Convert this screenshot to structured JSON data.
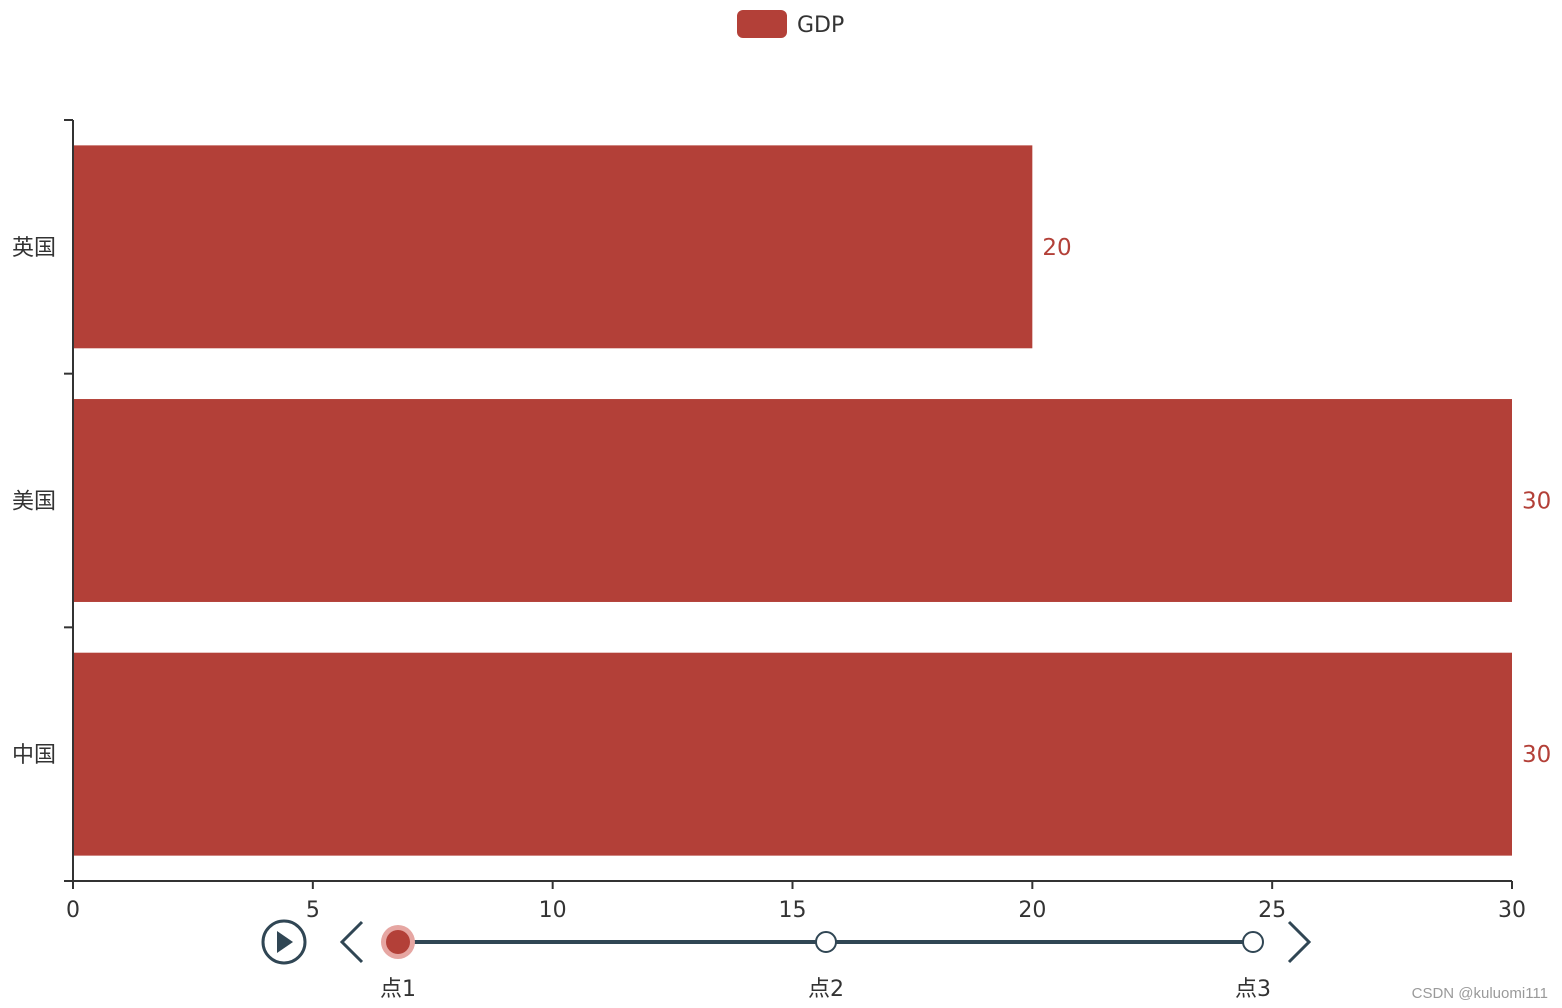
{
  "colors": {
    "bar": "#b34038",
    "axis": "#333333",
    "timeline": "#304654",
    "timeline_active_halo": "#e6a6a2"
  },
  "chart_data": {
    "type": "bar",
    "orientation": "horizontal",
    "categories": [
      "中国",
      "美国",
      "英国"
    ],
    "series": [
      {
        "name": "GDP",
        "values": [
          30,
          30,
          20
        ]
      }
    ],
    "xlim": [
      0,
      30
    ],
    "x_ticks": [
      0,
      5,
      10,
      15,
      20,
      25,
      30
    ],
    "data_labels": true,
    "legend": {
      "position": "top-center",
      "items": [
        "GDP"
      ]
    },
    "grid": false
  },
  "timeline": {
    "points": [
      "点1",
      "点2",
      "点3"
    ],
    "active_index": 0,
    "play_icon": "play-icon",
    "prev_icon": "chevron-left-icon",
    "next_icon": "chevron-right-icon"
  },
  "watermark": "CSDN @kuluomi111"
}
